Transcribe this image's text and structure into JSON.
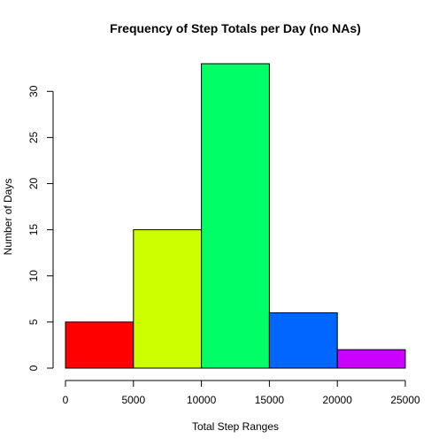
{
  "chart_data": {
    "type": "bar",
    "title": "Frequency of Step Totals per Day (no NAs)",
    "xlabel": "Total Step Ranges",
    "ylabel": "Number of Days",
    "bins": [
      {
        "from": 0,
        "to": 5000,
        "count": 5,
        "color": "#ff0000"
      },
      {
        "from": 5000,
        "to": 10000,
        "count": 15,
        "color": "#ccff00"
      },
      {
        "from": 10000,
        "to": 15000,
        "count": 33,
        "color": "#00ff66"
      },
      {
        "from": 15000,
        "to": 20000,
        "count": 6,
        "color": "#0066ff"
      },
      {
        "from": 20000,
        "to": 25000,
        "count": 2,
        "color": "#cc00ff"
      }
    ],
    "xlim": [
      0,
      25000
    ],
    "ylim": [
      0,
      33
    ],
    "x_ticks": [
      0,
      5000,
      10000,
      15000,
      20000,
      25000
    ],
    "y_ticks": [
      0,
      5,
      10,
      15,
      20,
      25,
      30
    ],
    "grid": false,
    "legend": "none"
  }
}
